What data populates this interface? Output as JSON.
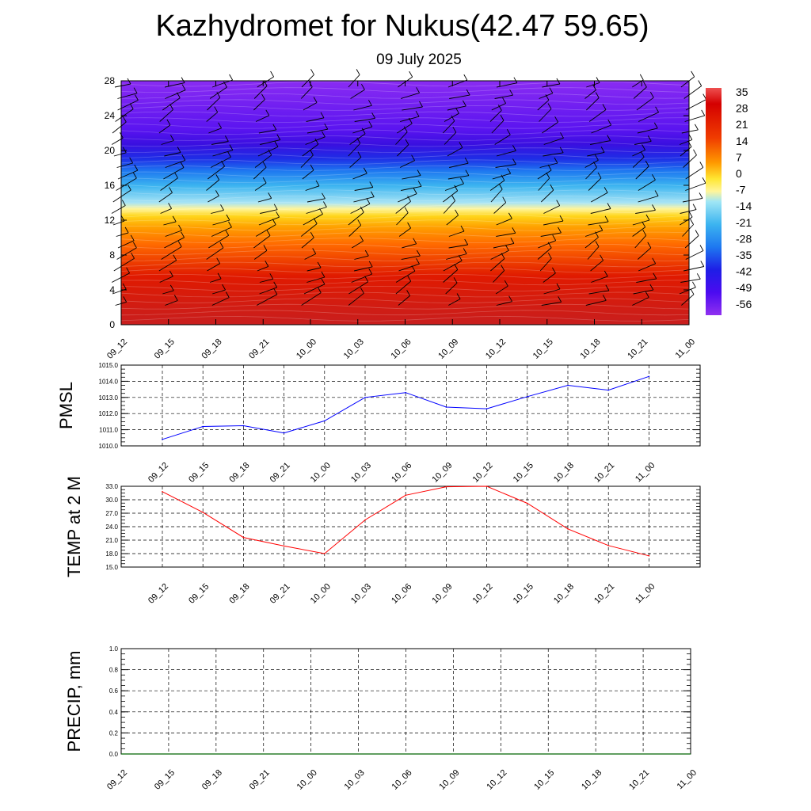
{
  "title": "Kazhydromet for Nukus(42.47 59.65)",
  "subtitle": "09 July 2025",
  "time_labels": [
    "09_12",
    "09_15",
    "09_18",
    "09_21",
    "10_00",
    "10_03",
    "10_06",
    "10_09",
    "10_12",
    "10_15",
    "10_18",
    "10_21",
    "11_00"
  ],
  "colors": {
    "pmsl_line": "#0000ff",
    "temp_line": "#ff0000",
    "precip_line": "#006400",
    "wind_barb": "#000000"
  },
  "chart_data": [
    {
      "type": "heatmap",
      "name": "cross-section",
      "y_ticks": [
        0,
        4,
        8,
        12,
        16,
        20,
        24,
        28
      ],
      "ylim": [
        0,
        28
      ],
      "x_ticks": [
        "09_12",
        "09_15",
        "09_18",
        "09_21",
        "10_00",
        "10_03",
        "10_06",
        "10_09",
        "10_12",
        "10_15",
        "10_18",
        "10_21",
        "11_00"
      ],
      "colorbar_labels": [
        "35",
        "28",
        "21",
        "14",
        "7",
        "0",
        "-7",
        "-14",
        "-21",
        "-28",
        "-35",
        "-42",
        "-49",
        "-56"
      ],
      "colorscale": [
        "#8c28f0",
        "#4b0bf0",
        "#1e1ee6",
        "#1e64f0",
        "#3cb4f0",
        "#a0e6f5",
        "#fff59b",
        "#ffe632",
        "#ffb400",
        "#ff7800",
        "#f03c00",
        "#dc1e00",
        "#c80000"
      ],
      "grid": false,
      "wind_barbs": true
    },
    {
      "type": "line",
      "name": "PMSL",
      "ylabel": "PMSL",
      "categories": [
        "09_12",
        "09_15",
        "09_18",
        "09_21",
        "10_00",
        "10_03",
        "10_06",
        "10_09",
        "10_12",
        "10_15",
        "10_18",
        "10_21",
        "11_00"
      ],
      "values": [
        1010.4,
        1011.2,
        1011.25,
        1010.8,
        1011.55,
        1013.0,
        1013.3,
        1012.4,
        1012.3,
        1013.05,
        1013.75,
        1013.45,
        1014.3
      ],
      "ylim": [
        1010.0,
        1015.0
      ],
      "y_ticks": [
        "1010.0",
        "1011.0",
        "1012.0",
        "1013.0",
        "1014.0",
        "1015.0"
      ],
      "grid": true
    },
    {
      "type": "line",
      "name": "TEMP",
      "ylabel": "TEMP at 2 M",
      "categories": [
        "09_12",
        "09_15",
        "09_18",
        "09_21",
        "10_00",
        "10_03",
        "10_06",
        "10_09",
        "10_12",
        "10_15",
        "10_18",
        "10_21",
        "11_00"
      ],
      "values": [
        31.8,
        27.2,
        21.6,
        19.7,
        18.0,
        25.5,
        31.0,
        32.9,
        33.0,
        29.2,
        23.5,
        19.8,
        17.5
      ],
      "ylim": [
        15.0,
        33.0
      ],
      "y_ticks": [
        "15.0",
        "18.0",
        "21.0",
        "24.0",
        "27.0",
        "30.0",
        "33.0"
      ],
      "grid": true
    },
    {
      "type": "line",
      "name": "PRECIP",
      "ylabel": "PRECIP, mm",
      "categories": [
        "09_12",
        "09_15",
        "09_18",
        "09_21",
        "10_00",
        "10_03",
        "10_06",
        "10_09",
        "10_12",
        "10_15",
        "10_18",
        "10_21",
        "11_00"
      ],
      "values": [
        0,
        0,
        0,
        0,
        0,
        0,
        0,
        0,
        0,
        0,
        0,
        0,
        0
      ],
      "ylim": [
        0.0,
        1.0
      ],
      "y_ticks": [
        "0.0",
        "0.2",
        "0.4",
        "0.6",
        "0.8",
        "1.0"
      ],
      "grid": true
    }
  ]
}
